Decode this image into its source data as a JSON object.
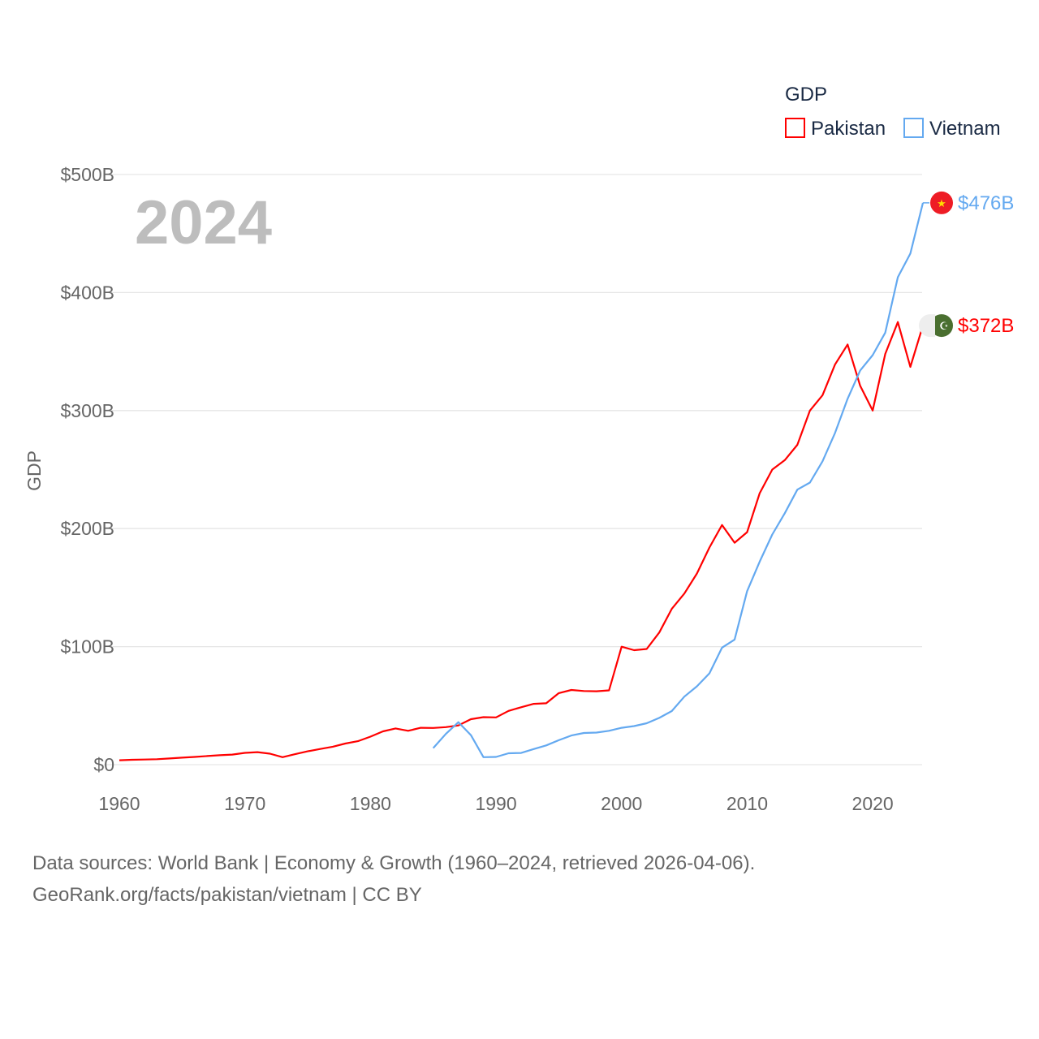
{
  "chart_data": {
    "type": "line",
    "title": "GDP",
    "year_watermark": "2024",
    "xlabel": "",
    "ylabel": "GDP",
    "xlim": [
      1960,
      2024
    ],
    "ylim": [
      0,
      500
    ],
    "x_ticks": [
      1960,
      1970,
      1980,
      1990,
      2000,
      2010,
      2020
    ],
    "y_ticks": [
      0,
      100,
      200,
      300,
      400,
      500
    ],
    "y_tick_labels": [
      "$0",
      "$100B",
      "$200B",
      "$300B",
      "$400B",
      "$500B"
    ],
    "legend_placement": "top-right",
    "grid": true,
    "series": [
      {
        "name": "Pakistan",
        "color": "#ff0000",
        "start_year": 1960,
        "end_label": "$372B",
        "flag": "pakistan-flag",
        "values": [
          3.7,
          4.1,
          4.3,
          4.6,
          5.2,
          5.9,
          6.5,
          7.3,
          8.0,
          8.5,
          10.0,
          10.6,
          9.3,
          6.3,
          8.9,
          11.3,
          13.3,
          15.2,
          17.9,
          19.9,
          23.7,
          28.2,
          30.7,
          28.7,
          31.2,
          31.1,
          31.8,
          33.2,
          38.5,
          40.2,
          40.0,
          45.5,
          48.6,
          51.5,
          52.0,
          60.6,
          63.3,
          62.4,
          62.2,
          62.9,
          99.9,
          97,
          98,
          112,
          132,
          145,
          162,
          184,
          203,
          188,
          197,
          230,
          250,
          258,
          271,
          300,
          313,
          339,
          356,
          321,
          300,
          348,
          375,
          337,
          372
        ]
      },
      {
        "name": "Vietnam",
        "color": "#64a9f0",
        "start_year": 1985,
        "end_label": "$476B",
        "flag": "vietnam-flag",
        "values": [
          14,
          26,
          36,
          25,
          6.3,
          6.5,
          9.6,
          9.9,
          13.2,
          16.3,
          20.7,
          24.7,
          26.8,
          27.2,
          28.7,
          31.2,
          32.7,
          35.1,
          39.6,
          45.4,
          57.6,
          66.4,
          77.4,
          99.1,
          106,
          147,
          172,
          195,
          213,
          233,
          239,
          257,
          281,
          310,
          334,
          347,
          366,
          413,
          433,
          476
        ]
      }
    ]
  },
  "footer": {
    "line1": "Data sources: World Bank | Economy & Growth (1960–2024, retrieved 2026-04-06).",
    "line2": "GeoRank.org/facts/pakistan/vietnam | CC BY"
  }
}
